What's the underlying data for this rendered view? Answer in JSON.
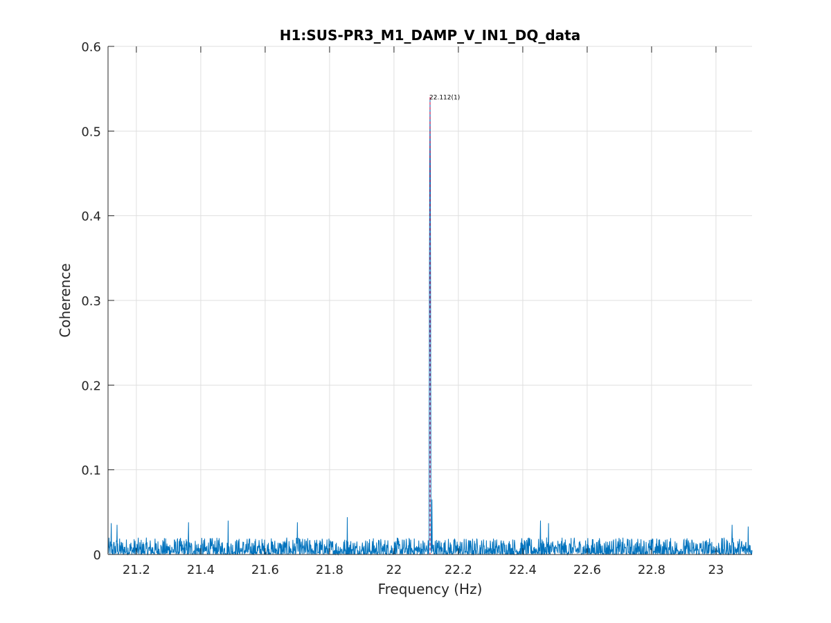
{
  "chart_data": {
    "type": "line",
    "title": "H1:SUS-PR3_M1_DAMP_V_IN1_DQ_data",
    "xlabel": "Frequency (Hz)",
    "ylabel": "Coherence",
    "xlim": [
      21.112,
      23.112
    ],
    "ylim": [
      0,
      0.6
    ],
    "xticks": [
      21.2,
      21.4,
      21.6,
      21.8,
      22,
      22.2,
      22.4,
      22.6,
      22.8,
      23
    ],
    "xtick_labels": [
      "21.2",
      "21.4",
      "21.6",
      "21.8",
      "22",
      "22.2",
      "22.4",
      "22.6",
      "22.8",
      "23"
    ],
    "yticks": [
      0,
      0.1,
      0.2,
      0.3,
      0.4,
      0.5,
      0.6
    ],
    "ytick_labels": [
      "0",
      "0.1",
      "0.2",
      "0.3",
      "0.4",
      "0.5",
      "0.6"
    ],
    "grid": true,
    "series": [
      {
        "name": "coherence",
        "color": "#0072BD",
        "noise_floor_max": 0.02,
        "peaks": [
          {
            "x": 22.11,
            "y": 0.315
          },
          {
            "x": 22.111,
            "y": 0.46
          },
          {
            "x": 22.112,
            "y": 0.54
          },
          {
            "x": 22.113,
            "y": 0.455
          },
          {
            "x": 22.114,
            "y": 0.25
          },
          {
            "x": 22.118,
            "y": 0.065
          },
          {
            "x": 21.855,
            "y": 0.044
          },
          {
            "x": 22.455,
            "y": 0.04
          },
          {
            "x": 21.485,
            "y": 0.04
          },
          {
            "x": 21.362,
            "y": 0.038
          },
          {
            "x": 22.48,
            "y": 0.037
          },
          {
            "x": 21.7,
            "y": 0.038
          },
          {
            "x": 21.122,
            "y": 0.037
          },
          {
            "x": 23.05,
            "y": 0.035
          },
          {
            "x": 23.1,
            "y": 0.033
          },
          {
            "x": 21.14,
            "y": 0.035
          }
        ]
      }
    ],
    "marker": {
      "x": 22.112,
      "label": "22.112(1)",
      "color": "#e0003c"
    }
  }
}
